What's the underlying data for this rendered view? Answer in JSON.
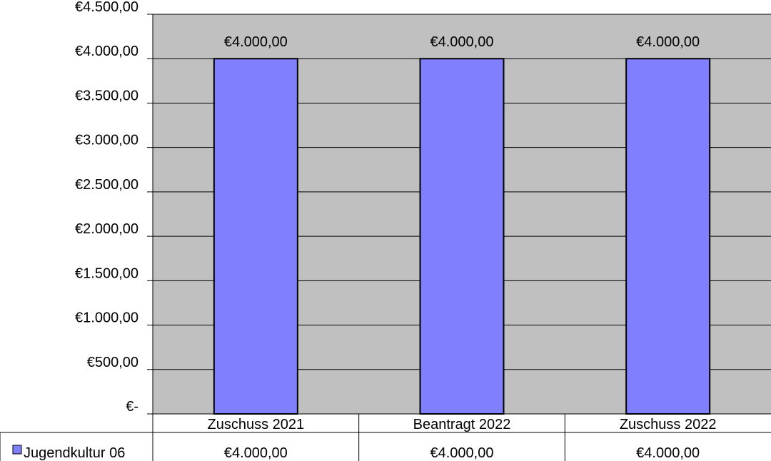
{
  "chart_data": {
    "type": "bar",
    "categories": [
      "Zuschuss 2021",
      "Beantragt 2022",
      "Zuschuss 2022"
    ],
    "series": [
      {
        "name": "Jugendkultur 06",
        "values": [
          4000,
          4000,
          4000
        ],
        "color": "#8080ff"
      }
    ],
    "data_labels": [
      "€4.000,00",
      "€4.000,00",
      "€4.000,00"
    ],
    "table_values": [
      "€4.000,00",
      "€4.000,00",
      "€4.000,00"
    ],
    "y_ticks": [
      {
        "value": 0,
        "label": "€-"
      },
      {
        "value": 500,
        "label": "€500,00"
      },
      {
        "value": 1000,
        "label": "€1.000,00"
      },
      {
        "value": 1500,
        "label": "€1.500,00"
      },
      {
        "value": 2000,
        "label": "€2.000,00"
      },
      {
        "value": 2500,
        "label": "€2.500,00"
      },
      {
        "value": 3000,
        "label": "€3.000,00"
      },
      {
        "value": 3500,
        "label": "€3.500,00"
      },
      {
        "value": 4000,
        "label": "€4.000,00"
      },
      {
        "value": 4500,
        "label": "€4.500,00"
      }
    ],
    "ylim": [
      0,
      4500
    ],
    "grid": true,
    "plot_background": "#c0c0c0",
    "legend_placement": "data-table-left",
    "title": "",
    "xlabel": "",
    "ylabel": ""
  }
}
